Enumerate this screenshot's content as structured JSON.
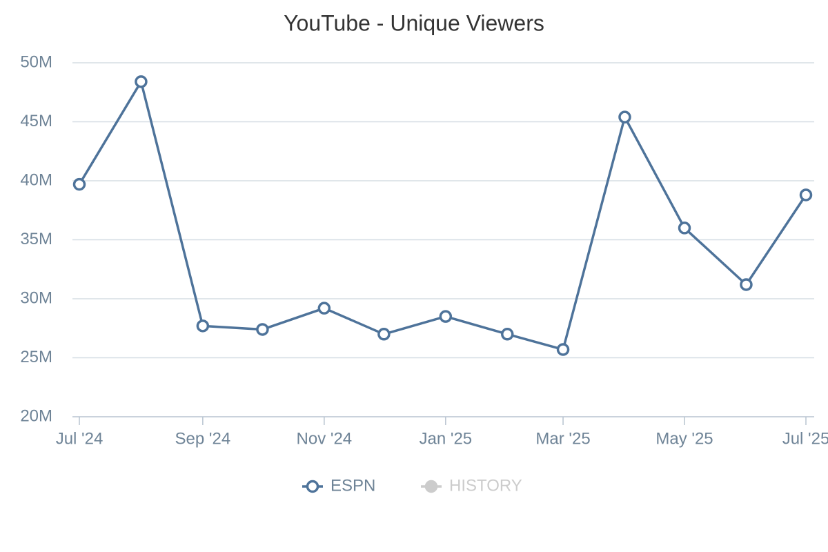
{
  "chart_data": {
    "type": "line",
    "title": "YouTube - Unique Viewers",
    "x": [
      "2024-07",
      "2024-08",
      "2024-09",
      "2024-10",
      "2024-11",
      "2024-12",
      "2025-01",
      "2025-02",
      "2025-03",
      "2025-04",
      "2025-05",
      "2025-06",
      "2025-07"
    ],
    "series": [
      {
        "name": "ESPN",
        "color": "#4e739a",
        "values": [
          39700000,
          48400000,
          27700000,
          27400000,
          29200000,
          27000000,
          28500000,
          27000000,
          25700000,
          45400000,
          36000000,
          31200000,
          38800000
        ]
      },
      {
        "name": "HISTORY",
        "color": "#cccccc",
        "hidden": true,
        "values": [
          null,
          null,
          null,
          null,
          null,
          null,
          null,
          null,
          null,
          null,
          null,
          null,
          null
        ]
      }
    ],
    "ylim": [
      20000000,
      50000000
    ],
    "yticks": [
      {
        "value": 20000000,
        "label": "20M"
      },
      {
        "value": 25000000,
        "label": "25M"
      },
      {
        "value": 30000000,
        "label": "30M"
      },
      {
        "value": 35000000,
        "label": "35M"
      },
      {
        "value": 40000000,
        "label": "40M"
      },
      {
        "value": 45000000,
        "label": "45M"
      },
      {
        "value": 50000000,
        "label": "50M"
      }
    ],
    "xlim": [
      "2024-07",
      "2025-07"
    ],
    "xticks": [
      {
        "value": "2024-07",
        "label": "Jul '24"
      },
      {
        "value": "2024-09",
        "label": "Sep '24"
      },
      {
        "value": "2024-11",
        "label": "Nov '24"
      },
      {
        "value": "2025-01",
        "label": "Jan '25"
      },
      {
        "value": "2025-03",
        "label": "Mar '25"
      },
      {
        "value": "2025-05",
        "label": "May '25"
      },
      {
        "value": "2025-07",
        "label": "Jul '25"
      }
    ],
    "grid": true,
    "legend": "bottom"
  }
}
